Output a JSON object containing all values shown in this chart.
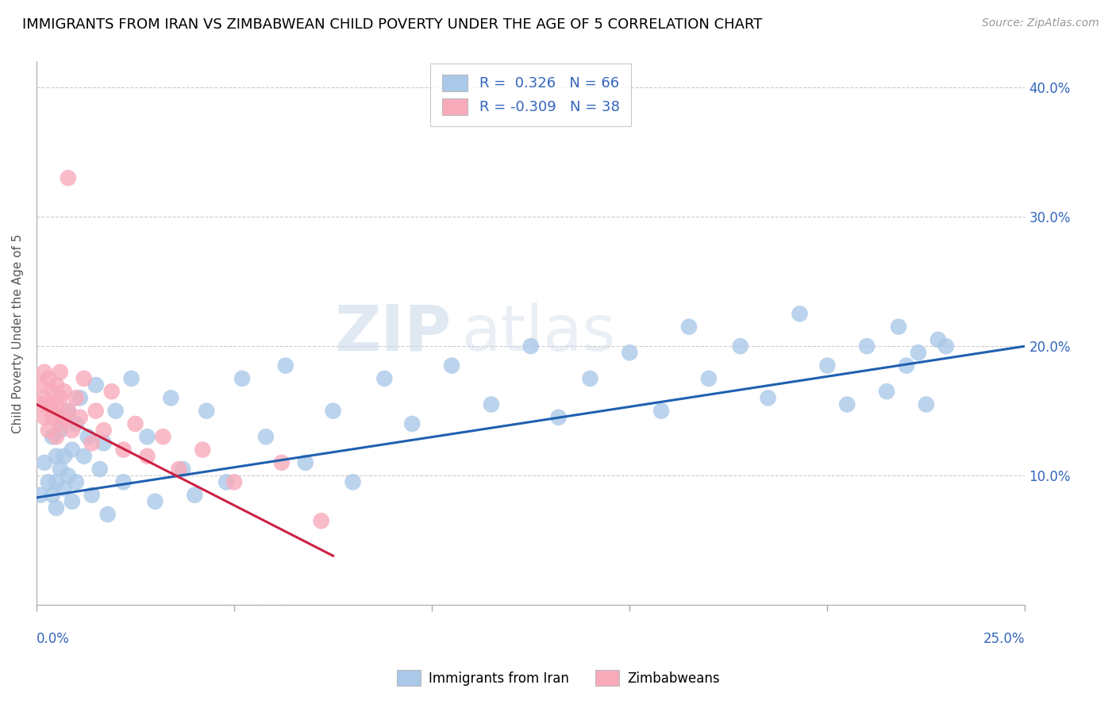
{
  "title": "IMMIGRANTS FROM IRAN VS ZIMBABWEAN CHILD POVERTY UNDER THE AGE OF 5 CORRELATION CHART",
  "source": "Source: ZipAtlas.com",
  "ylabel": "Child Poverty Under the Age of 5",
  "legend_label1": "Immigrants from Iran",
  "legend_label2": "Zimbabweans",
  "R1": 0.326,
  "N1": 66,
  "R2": -0.309,
  "N2": 38,
  "color1": "#aac8e8",
  "color2": "#f8aabb",
  "line_color1": "#2060b0",
  "line_color2": "#cc2244",
  "watermark_zip": "ZIP",
  "watermark_atlas": "atlas",
  "iran_x": [
    0.001,
    0.002,
    0.003,
    0.004,
    0.004,
    0.005,
    0.005,
    0.005,
    0.006,
    0.006,
    0.007,
    0.007,
    0.008,
    0.008,
    0.009,
    0.009,
    0.01,
    0.01,
    0.011,
    0.012,
    0.013,
    0.014,
    0.015,
    0.016,
    0.017,
    0.018,
    0.02,
    0.022,
    0.024,
    0.028,
    0.03,
    0.034,
    0.037,
    0.04,
    0.043,
    0.048,
    0.052,
    0.058,
    0.063,
    0.068,
    0.075,
    0.08,
    0.088,
    0.095,
    0.105,
    0.115,
    0.125,
    0.132,
    0.14,
    0.15,
    0.158,
    0.165,
    0.17,
    0.178,
    0.185,
    0.193,
    0.2,
    0.205,
    0.21,
    0.215,
    0.218,
    0.22,
    0.223,
    0.225,
    0.228,
    0.23
  ],
  "iran_y": [
    0.085,
    0.11,
    0.095,
    0.13,
    0.085,
    0.115,
    0.095,
    0.075,
    0.135,
    0.105,
    0.115,
    0.09,
    0.15,
    0.1,
    0.12,
    0.08,
    0.14,
    0.095,
    0.16,
    0.115,
    0.13,
    0.085,
    0.17,
    0.105,
    0.125,
    0.07,
    0.15,
    0.095,
    0.175,
    0.13,
    0.08,
    0.16,
    0.105,
    0.085,
    0.15,
    0.095,
    0.175,
    0.13,
    0.185,
    0.11,
    0.15,
    0.095,
    0.175,
    0.14,
    0.185,
    0.155,
    0.2,
    0.145,
    0.175,
    0.195,
    0.15,
    0.215,
    0.175,
    0.2,
    0.16,
    0.225,
    0.185,
    0.155,
    0.2,
    0.165,
    0.215,
    0.185,
    0.195,
    0.155,
    0.205,
    0.2
  ],
  "zim_x": [
    0.001,
    0.001,
    0.002,
    0.002,
    0.002,
    0.003,
    0.003,
    0.003,
    0.004,
    0.004,
    0.004,
    0.005,
    0.005,
    0.005,
    0.006,
    0.006,
    0.006,
    0.007,
    0.007,
    0.008,
    0.008,
    0.009,
    0.01,
    0.011,
    0.012,
    0.014,
    0.015,
    0.017,
    0.019,
    0.022,
    0.025,
    0.028,
    0.032,
    0.036,
    0.042,
    0.05,
    0.062,
    0.072
  ],
  "zim_y": [
    0.155,
    0.17,
    0.145,
    0.16,
    0.18,
    0.135,
    0.155,
    0.175,
    0.145,
    0.165,
    0.15,
    0.13,
    0.155,
    0.17,
    0.14,
    0.16,
    0.18,
    0.145,
    0.165,
    0.33,
    0.15,
    0.135,
    0.16,
    0.145,
    0.175,
    0.125,
    0.15,
    0.135,
    0.165,
    0.12,
    0.14,
    0.115,
    0.13,
    0.105,
    0.12,
    0.095,
    0.11,
    0.065
  ],
  "iran_line_x": [
    0.0,
    0.25
  ],
  "iran_line_y": [
    0.083,
    0.2
  ],
  "zim_line_x": [
    0.0,
    0.075
  ],
  "zim_line_y": [
    0.155,
    0.038
  ],
  "xlim": [
    0.0,
    0.25
  ],
  "ylim": [
    0.0,
    0.42
  ],
  "figsize": [
    14.06,
    8.92
  ],
  "dpi": 100
}
